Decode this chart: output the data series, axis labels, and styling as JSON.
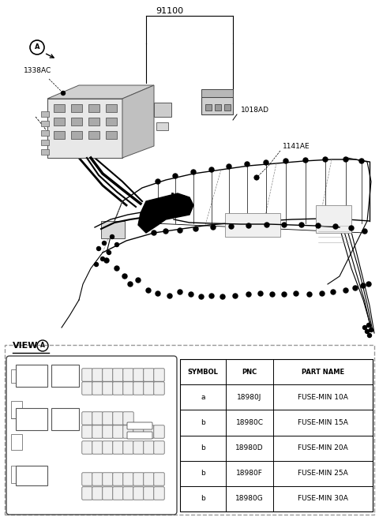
{
  "bg_color": "#ffffff",
  "title": "91100",
  "label_1338AC": "1338AC",
  "label_1018AD": "1018AD",
  "label_1141AE": "1141AE",
  "view_label": "VIEW",
  "circle_label": "A",
  "table_headers": [
    "SYMBOL",
    "PNC",
    "PART NAME"
  ],
  "table_rows": [
    [
      "a",
      "18980J",
      "FUSE-MIN 10A"
    ],
    [
      "b",
      "18980C",
      "FUSE-MIN 15A"
    ],
    [
      "b",
      "18980D",
      "FUSE-MIN 20A"
    ],
    [
      "b",
      "18980F",
      "FUSE-MIN 25A"
    ],
    [
      "b",
      "18980G",
      "FUSE-MIN 30A"
    ]
  ]
}
